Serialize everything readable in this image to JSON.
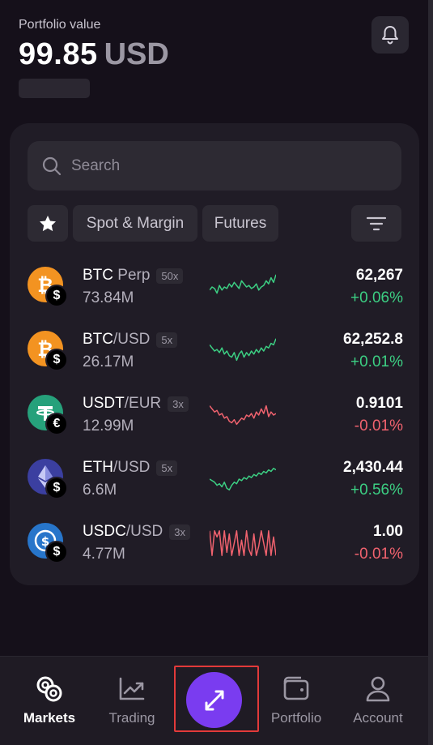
{
  "header": {
    "portfolio_label": "Portfolio value",
    "portfolio_value": "99.85",
    "portfolio_currency": "USD",
    "bell_icon": "bell-icon"
  },
  "search": {
    "placeholder": "Search",
    "icon": "search-icon"
  },
  "filters": {
    "favorites_icon": "star-icon",
    "spot_margin_label": "Spot & Margin",
    "futures_label": "Futures",
    "filter_icon": "filter-icon"
  },
  "markets": [
    {
      "base": "BTC",
      "separator": " ",
      "quote": "Perp",
      "leverage": "50x",
      "volume": "73.84M",
      "price": "62,267",
      "change": "+0.06%",
      "direction": "up",
      "coin_icon": "bitcoin-icon",
      "quote_icon": "dollar-icon",
      "coin_color": "#f39321",
      "spark": [
        0.6,
        0.5,
        0.55,
        0.7,
        0.45,
        0.6,
        0.5,
        0.55,
        0.4,
        0.5,
        0.35,
        0.45,
        0.55,
        0.3,
        0.4,
        0.5,
        0.45,
        0.55,
        0.5,
        0.4,
        0.6,
        0.5,
        0.45,
        0.3,
        0.4,
        0.2,
        0.35,
        0.1
      ]
    },
    {
      "base": "BTC",
      "separator": "/",
      "quote": "USD",
      "leverage": "5x",
      "volume": "26.17M",
      "price": "62,252.8",
      "change": "+0.01%",
      "direction": "up",
      "coin_icon": "bitcoin-icon",
      "quote_icon": "dollar-icon",
      "coin_color": "#f39321",
      "spark": [
        0.3,
        0.4,
        0.5,
        0.45,
        0.55,
        0.4,
        0.6,
        0.5,
        0.65,
        0.7,
        0.55,
        0.8,
        0.6,
        0.5,
        0.7,
        0.55,
        0.65,
        0.5,
        0.6,
        0.45,
        0.55,
        0.4,
        0.5,
        0.35,
        0.4,
        0.25,
        0.3,
        0.1
      ]
    },
    {
      "base": "USDT",
      "separator": "/",
      "quote": "EUR",
      "leverage": "3x",
      "volume": "12.99M",
      "price": "0.9101",
      "change": "-0.01%",
      "direction": "down",
      "coin_icon": "tether-icon",
      "quote_icon": "euro-icon",
      "coin_color": "#26a17b",
      "spark": [
        0.2,
        0.3,
        0.4,
        0.35,
        0.5,
        0.45,
        0.6,
        0.55,
        0.7,
        0.75,
        0.65,
        0.8,
        0.7,
        0.6,
        0.65,
        0.5,
        0.55,
        0.45,
        0.6,
        0.4,
        0.5,
        0.3,
        0.45,
        0.2,
        0.55,
        0.4,
        0.5,
        0.45
      ]
    },
    {
      "base": "ETH",
      "separator": "/",
      "quote": "USD",
      "leverage": "5x",
      "volume": "6.6M",
      "price": "2,430.44",
      "change": "+0.56%",
      "direction": "up",
      "coin_icon": "ethereum-icon",
      "quote_icon": "dollar-icon",
      "coin_color": "#3b3fa0",
      "spark": [
        0.5,
        0.55,
        0.6,
        0.7,
        0.65,
        0.75,
        0.6,
        0.8,
        0.85,
        0.7,
        0.6,
        0.65,
        0.5,
        0.55,
        0.45,
        0.5,
        0.4,
        0.45,
        0.35,
        0.4,
        0.3,
        0.35,
        0.25,
        0.3,
        0.2,
        0.25,
        0.15,
        0.2
      ]
    },
    {
      "base": "USDC",
      "separator": "/",
      "quote": "USD",
      "leverage": "3x",
      "volume": "4.77M",
      "price": "1.00",
      "change": "-0.01%",
      "direction": "down",
      "coin_icon": "usdc-icon",
      "quote_icon": "dollar-icon",
      "coin_color": "#2775ca",
      "spark": [
        0.1,
        0.9,
        0.1,
        0.3,
        0.1,
        0.9,
        0.1,
        0.8,
        0.2,
        0.9,
        0.5,
        0.1,
        0.9,
        0.4,
        0.9,
        0.1,
        0.7,
        0.9,
        0.2,
        0.9,
        0.6,
        0.1,
        0.5,
        0.9,
        0.1,
        0.9,
        0.3,
        0.9
      ]
    }
  ],
  "nav": {
    "markets_label": "Markets",
    "trading_label": "Trading",
    "portfolio_label": "Portfolio",
    "account_label": "Account",
    "trade_icon": "swap-arrows-icon"
  },
  "colors": {
    "up": "#3ccf83",
    "down": "#f0626e",
    "accent": "#7a3cf0"
  }
}
